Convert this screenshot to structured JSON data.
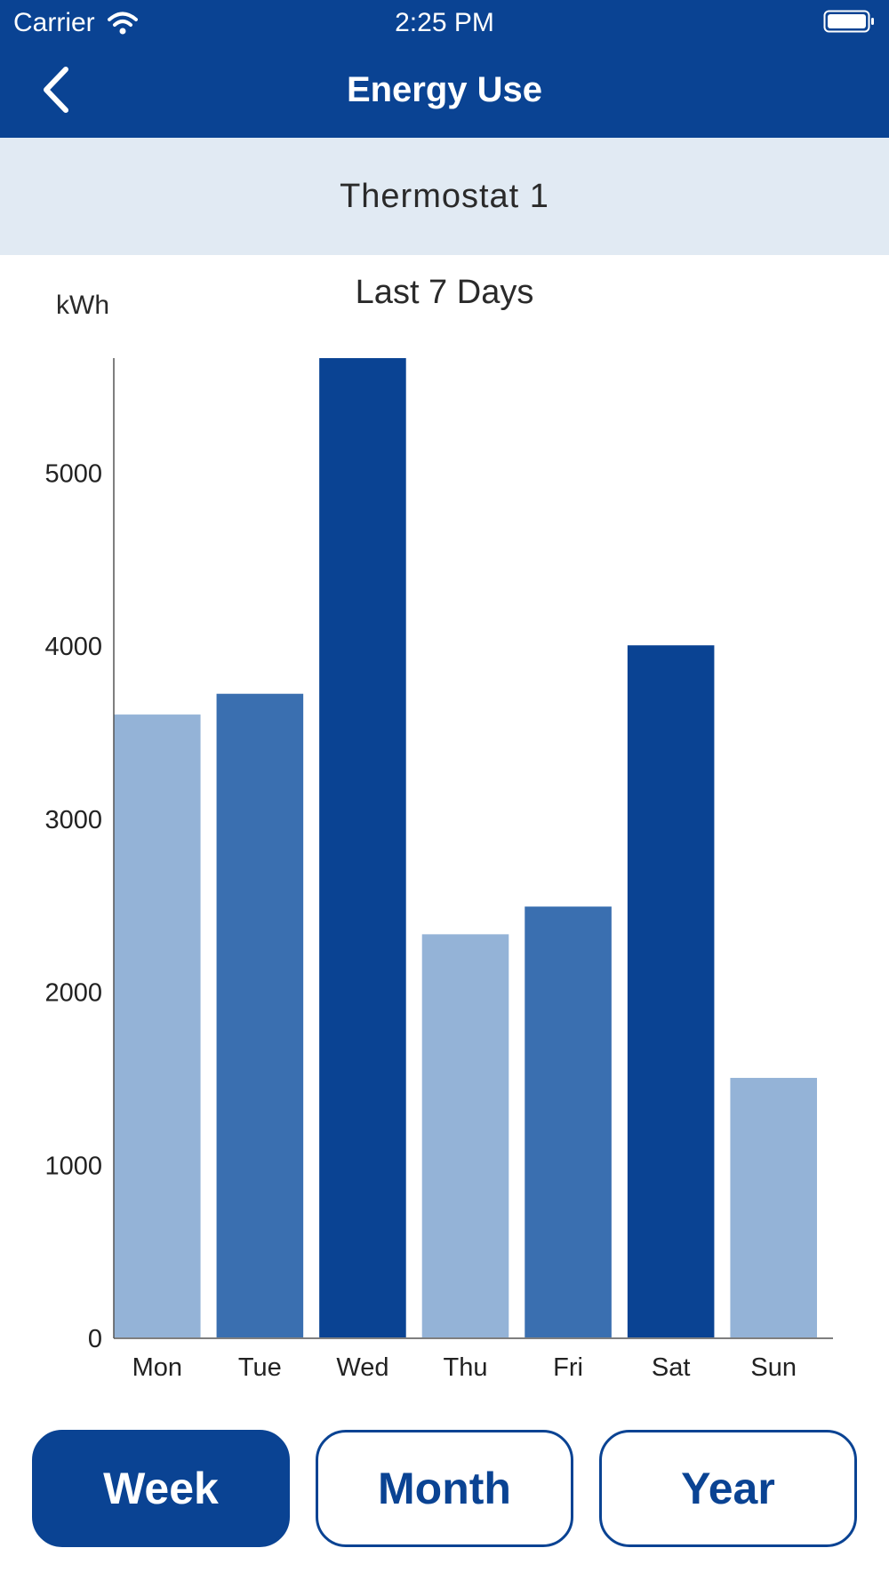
{
  "status_bar": {
    "carrier": "Carrier",
    "time": "2:25 PM"
  },
  "nav": {
    "title": "Energy Use",
    "back_icon": "chevron-left-icon"
  },
  "device": {
    "name": "Thermostat 1"
  },
  "chart": {
    "title": "Last 7 Days",
    "unit": "kWh"
  },
  "chart_data": {
    "type": "bar",
    "title": "Last 7 Days",
    "ylabel": "kWh",
    "xlabel": "",
    "categories": [
      "Mon",
      "Tue",
      "Wed",
      "Thu",
      "Fri",
      "Sat",
      "Sun"
    ],
    "values": [
      3600,
      3720,
      5660,
      2330,
      2490,
      4000,
      1500
    ],
    "bar_colors": [
      "#94b3d7",
      "#3a6fb0",
      "#0a4393",
      "#94b3d7",
      "#3a6fb0",
      "#0a4393",
      "#94b3d7"
    ],
    "ylim": [
      0,
      5660
    ],
    "yticks": [
      0,
      1000,
      2000,
      3000,
      4000,
      5000
    ],
    "grid": false,
    "legend": "none"
  },
  "range_selector": {
    "options": [
      {
        "label": "Week",
        "active": true
      },
      {
        "label": "Month",
        "active": false
      },
      {
        "label": "Year",
        "active": false
      }
    ]
  },
  "colors": {
    "brand": "#0a4393",
    "band": "#e1eaf3",
    "bar_light": "#94b3d7",
    "bar_mid": "#3a6fb0",
    "bar_dark": "#0a4393"
  }
}
